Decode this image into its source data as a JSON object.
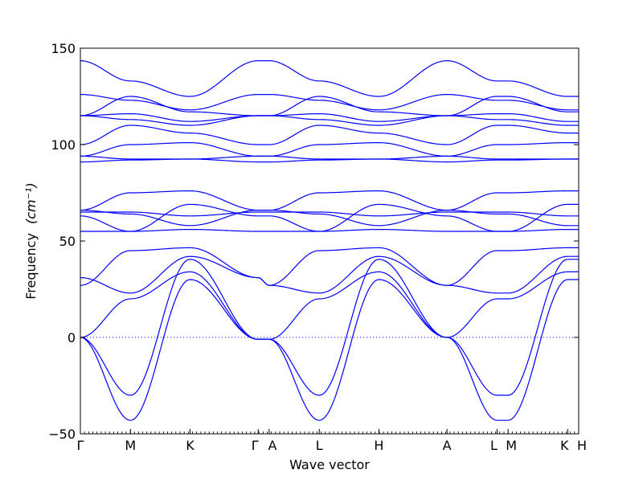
{
  "chart_data": {
    "type": "line",
    "xlabel": "Wave vector",
    "ylabel_text": "Frequency",
    "ylabel_unit": "(cm⁻¹)",
    "ylim": [
      -50,
      150
    ],
    "yticks": [
      -50,
      0,
      50,
      100,
      150
    ],
    "grid": false,
    "line_color": "#0000ff",
    "zero_line_style": "dotted",
    "path": [
      {
        "label": "Γ",
        "x": 0.0
      },
      {
        "label": "M",
        "x": 1.0
      },
      {
        "label": "K",
        "x": 2.19
      },
      {
        "label": "Γ",
        "x": 3.55
      },
      {
        "label": "A",
        "x": 3.77
      },
      {
        "label": "L",
        "x": 4.77
      },
      {
        "label": "H",
        "x": 5.96
      },
      {
        "label": "A",
        "x": 7.32
      },
      {
        "label": "L",
        "x": 8.32
      },
      {
        "label": "M",
        "x": 8.54
      },
      {
        "label": "K",
        "x": 9.73
      },
      {
        "label": "H",
        "x": 9.95
      }
    ],
    "bands": [
      {
        "name": "b1",
        "values": [
          0,
          -30,
          40.5,
          -1,
          -1,
          -30,
          40.5,
          0,
          -30,
          -30,
          40.5,
          40.5
        ]
      },
      {
        "name": "b2",
        "values": [
          0,
          -43,
          30,
          -1,
          -1,
          -43,
          30,
          0,
          -43,
          -43,
          30,
          30
        ]
      },
      {
        "name": "b3",
        "values": [
          0,
          20,
          34,
          -1,
          -1,
          20,
          34,
          0,
          20,
          20,
          34,
          34
        ]
      },
      {
        "name": "b4",
        "values": [
          31,
          23,
          42,
          31,
          27,
          23,
          42,
          27,
          23,
          23,
          42,
          42
        ]
      },
      {
        "name": "b5",
        "values": [
          27,
          45,
          46.5,
          31,
          27,
          45,
          46.5,
          27,
          45,
          45,
          46.5,
          46.5
        ]
      },
      {
        "name": "b6",
        "values": [
          55,
          55,
          56,
          55,
          55,
          55,
          56,
          55,
          55,
          55,
          56,
          56
        ]
      },
      {
        "name": "b7",
        "values": [
          66,
          64,
          58,
          66,
          66,
          64,
          58,
          66,
          64,
          64,
          58,
          58
        ]
      },
      {
        "name": "b8",
        "values": [
          63,
          55,
          69,
          63,
          63,
          55,
          69,
          63,
          55,
          55,
          69,
          69
        ]
      },
      {
        "name": "b9",
        "values": [
          65,
          65,
          63,
          65,
          65,
          65,
          63,
          65,
          65,
          65,
          63,
          63
        ]
      },
      {
        "name": "b10",
        "values": [
          66,
          75,
          76,
          66,
          66,
          75,
          76,
          66,
          75,
          75,
          76,
          76
        ]
      },
      {
        "name": "b11",
        "values": [
          91,
          92,
          92.5,
          91,
          91,
          92,
          92.5,
          91,
          92,
          92,
          92.5,
          92.5
        ]
      },
      {
        "name": "b12",
        "values": [
          94,
          92.5,
          92.5,
          94,
          94,
          92.5,
          92.5,
          94,
          92.5,
          92.5,
          92.5,
          92.5
        ]
      },
      {
        "name": "b13",
        "values": [
          94,
          100,
          101,
          94,
          94,
          100,
          101,
          94,
          100,
          100,
          101,
          101
        ]
      },
      {
        "name": "b14",
        "values": [
          100,
          110,
          106,
          100,
          100,
          110,
          106,
          100,
          110,
          110,
          106,
          106
        ]
      },
      {
        "name": "b15",
        "values": [
          115,
          113,
          110,
          115,
          115,
          113,
          110,
          115,
          113,
          113,
          110,
          110
        ]
      },
      {
        "name": "b16",
        "values": [
          115,
          116,
          112,
          115,
          115,
          116,
          112,
          115,
          116,
          116,
          112,
          112
        ]
      },
      {
        "name": "b17",
        "values": [
          115,
          125,
          117,
          115,
          115,
          125,
          117,
          115,
          125,
          125,
          117,
          117
        ]
      },
      {
        "name": "b18",
        "values": [
          126,
          123,
          118,
          126,
          126,
          123,
          118,
          126,
          123,
          123,
          118,
          118
        ]
      },
      {
        "name": "b19",
        "values": [
          143.5,
          133,
          125,
          143.5,
          143.5,
          133,
          125,
          143.5,
          133,
          133,
          125,
          125
        ]
      }
    ]
  }
}
